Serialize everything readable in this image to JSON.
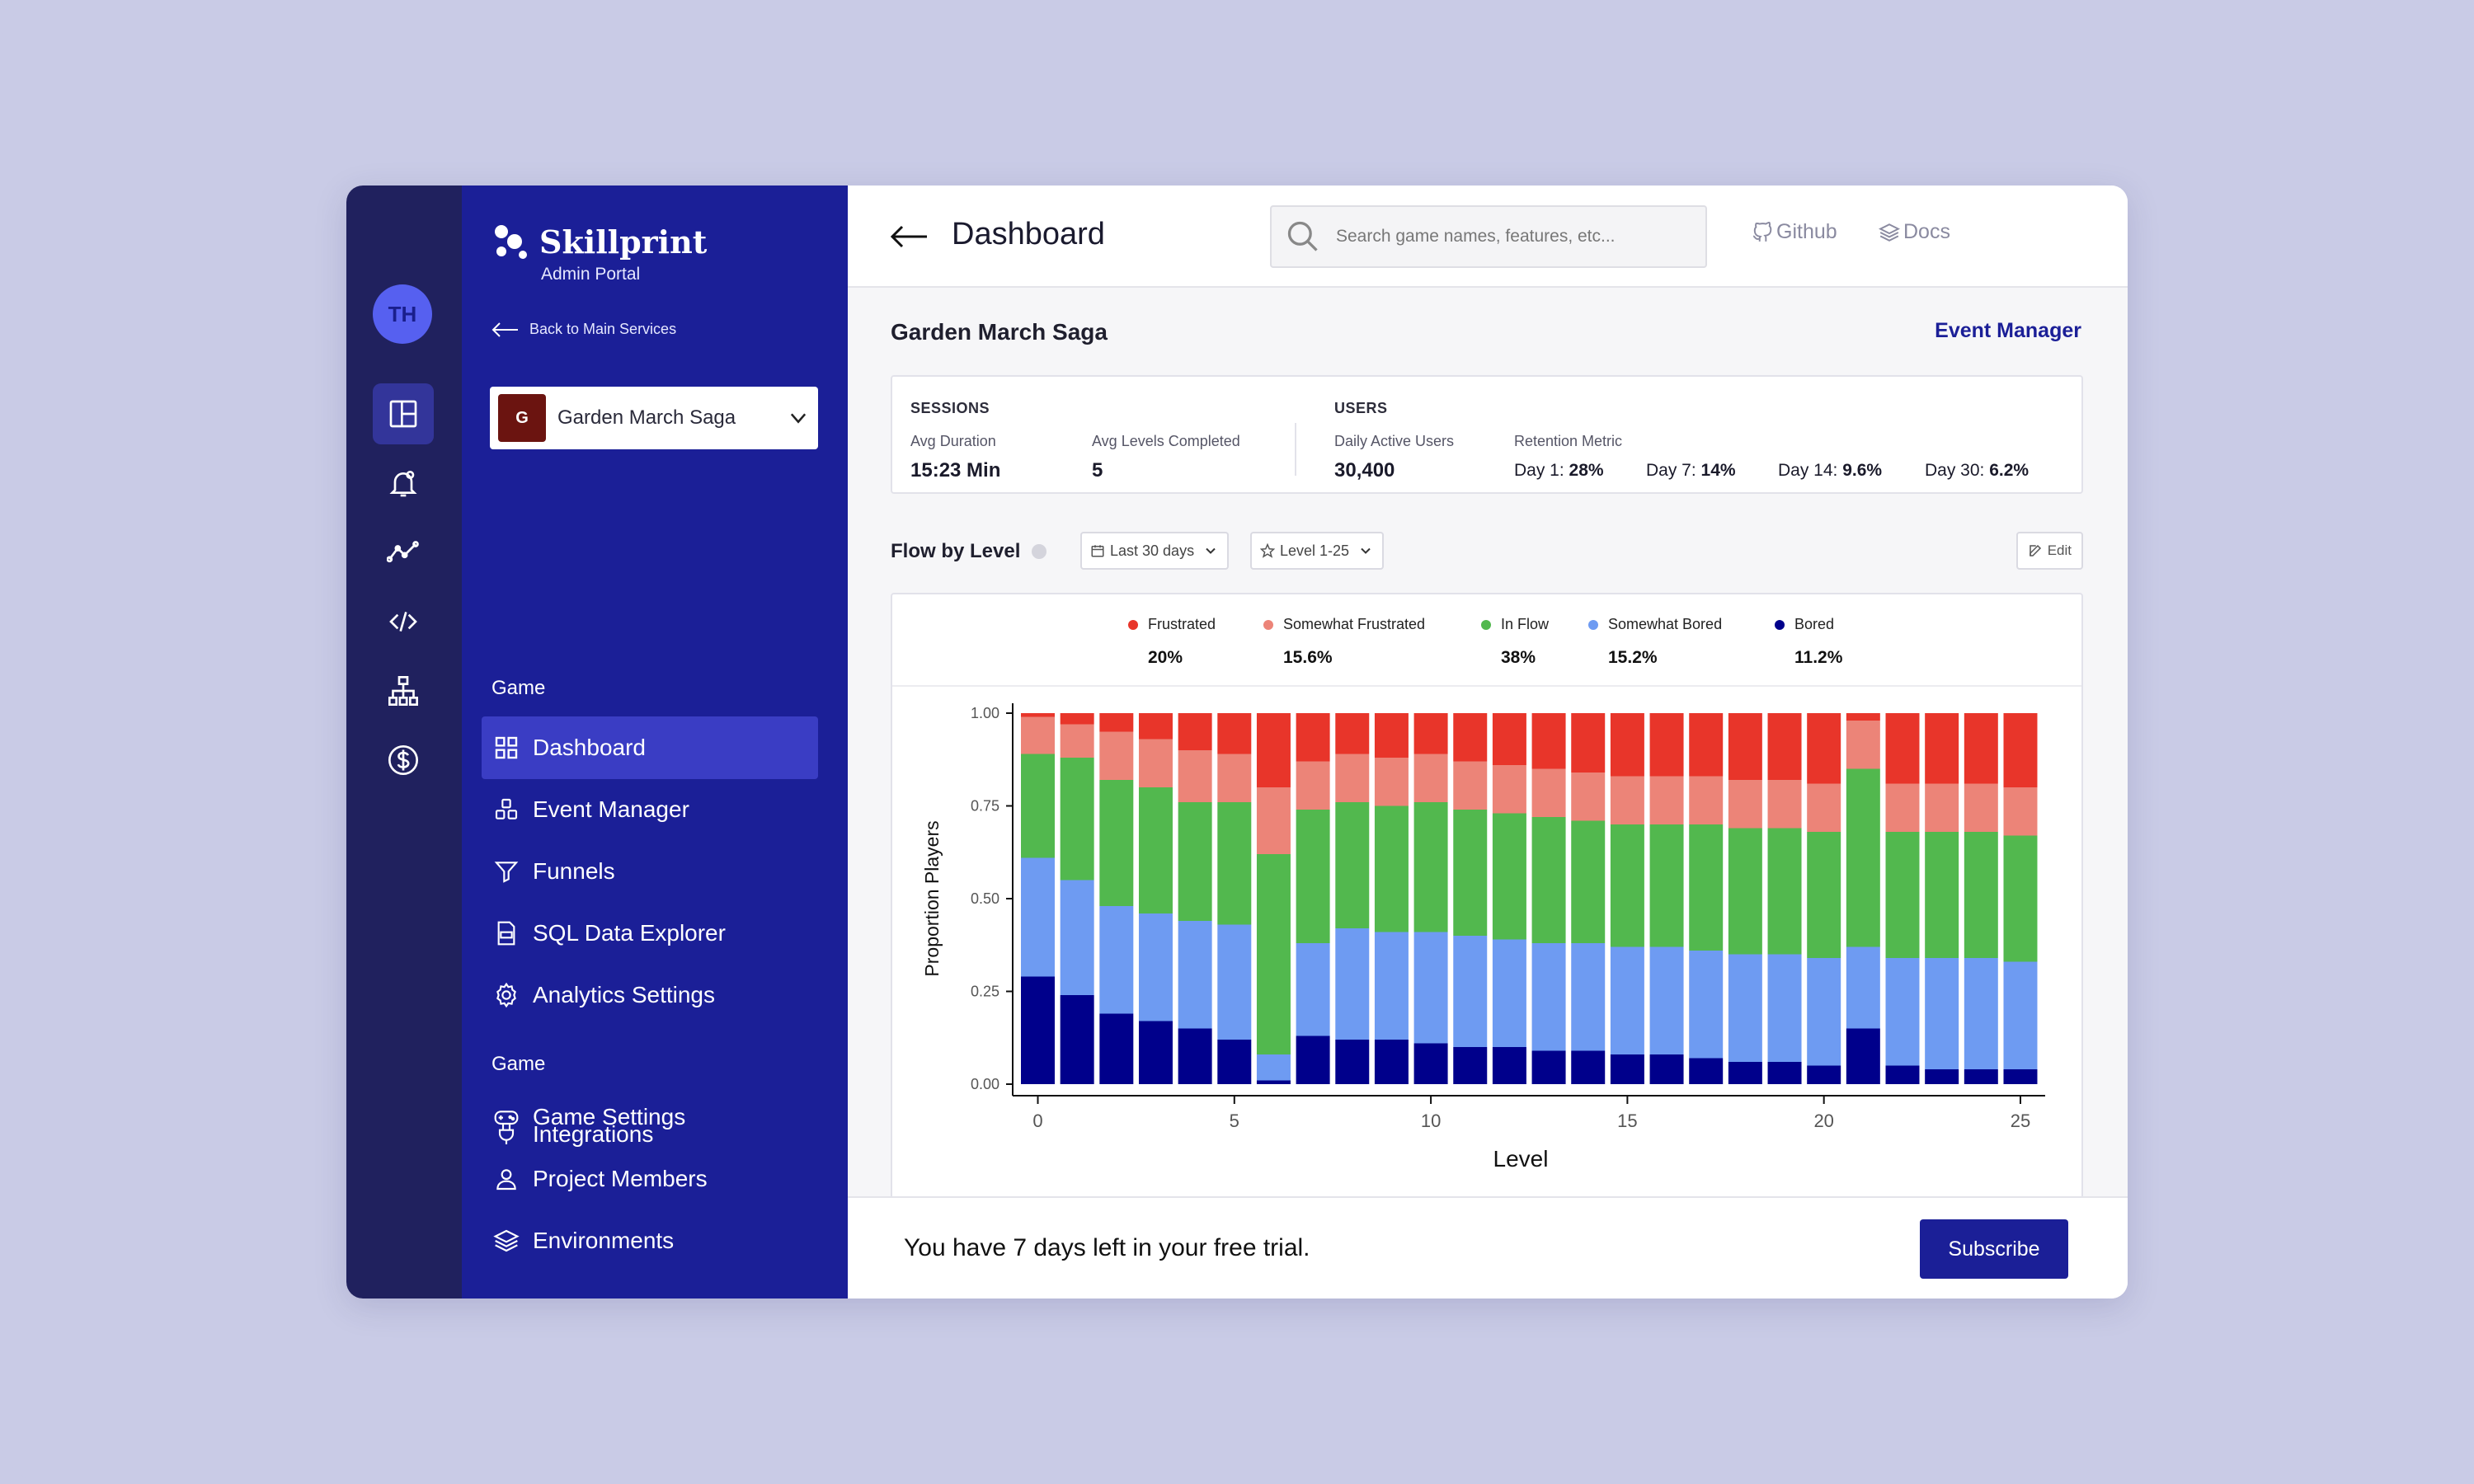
{
  "user": {
    "initials": "TH"
  },
  "brand": {
    "name": "Skillprint",
    "subtitle": "Admin Portal"
  },
  "sidebar": {
    "back_label": "Back to Main Services",
    "selected_game": {
      "initial": "G",
      "name": "Garden March Saga"
    },
    "section1": "Game",
    "section2": "Game",
    "items": [
      {
        "label": "Dashboard",
        "icon": "grid-icon"
      },
      {
        "label": "Event Manager",
        "icon": "cubes-icon"
      },
      {
        "label": "Funnels",
        "icon": "funnel-icon"
      },
      {
        "label": "SQL Data Explorer",
        "icon": "sql-file-icon"
      },
      {
        "label": "Analytics Settings",
        "icon": "gear-icon"
      },
      {
        "label": "Game Settings",
        "icon": "gamepad-icon"
      },
      {
        "label": "Project Members",
        "icon": "person-icon"
      },
      {
        "label": "Environments",
        "icon": "layers-icon"
      },
      {
        "label": "Integrations",
        "icon": "plug-icon"
      }
    ]
  },
  "rail": {
    "icons": [
      "layout-icon",
      "bell-icon",
      "line-chart-icon",
      "code-icon",
      "hierarchy-icon",
      "dollar-icon"
    ]
  },
  "header": {
    "title": "Dashboard",
    "search_placeholder": "Search game names, features, etc...",
    "github": "Github",
    "docs": "Docs"
  },
  "content": {
    "game_title": "Garden March Saga",
    "event_manager_link": "Event Manager"
  },
  "stats": {
    "sessions_header": "SESSIONS",
    "users_header": "USERS",
    "avg_duration_label": "Avg Duration",
    "avg_duration": "15:23 Min",
    "avg_levels_label": "Avg Levels Completed",
    "avg_levels": "5",
    "dau_label": "Daily Active Users",
    "dau": "30,400",
    "retention_label": "Retention Metric",
    "retention": [
      {
        "label": "Day 1:",
        "value": "28%"
      },
      {
        "label": "Day 7:",
        "value": "14%"
      },
      {
        "label": "Day 14:",
        "value": "9.6%"
      },
      {
        "label": "Day 30:",
        "value": "6.2%"
      }
    ]
  },
  "flow": {
    "title": "Flow by Level",
    "date_filter": "Last 30 days",
    "level_filter": "Level 1-25",
    "edit_label": "Edit",
    "legend": [
      {
        "name": "Frustrated",
        "pct": "20%",
        "color": "#e8352a"
      },
      {
        "name": "Somewhat Frustrated",
        "pct": "15.6%",
        "color": "#ec8478"
      },
      {
        "name": "In Flow",
        "pct": "38%",
        "color": "#52b84e"
      },
      {
        "name": "Somewhat Bored",
        "pct": "15.2%",
        "color": "#6e9bf2"
      },
      {
        "name": "Bored",
        "pct": "11.2%",
        "color": "#00008b"
      }
    ]
  },
  "chart_data": {
    "type": "bar",
    "stacked": true,
    "xlabel": "Level",
    "ylabel": "Proportion Players",
    "ylim": [
      0,
      1
    ],
    "yticks": [
      "0.00",
      "0.25",
      "0.50",
      "0.75",
      "1.00"
    ],
    "xticks": [
      0,
      5,
      10,
      15,
      20,
      25
    ],
    "categories": [
      0,
      1,
      2,
      3,
      4,
      5,
      6,
      7,
      8,
      9,
      10,
      11,
      12,
      13,
      14,
      15,
      16,
      17,
      18,
      19,
      20,
      21,
      22,
      23,
      24,
      25
    ],
    "series": [
      {
        "name": "Bored",
        "color": "#00008b",
        "values": [
          0.29,
          0.24,
          0.19,
          0.17,
          0.15,
          0.12,
          0.01,
          0.13,
          0.12,
          0.12,
          0.11,
          0.1,
          0.1,
          0.09,
          0.09,
          0.08,
          0.08,
          0.07,
          0.06,
          0.06,
          0.05,
          0.15,
          0.05,
          0.04,
          0.04,
          0.04
        ]
      },
      {
        "name": "Somewhat Bored",
        "color": "#6e9bf2",
        "values": [
          0.32,
          0.31,
          0.29,
          0.29,
          0.29,
          0.31,
          0.07,
          0.25,
          0.3,
          0.29,
          0.3,
          0.3,
          0.29,
          0.29,
          0.29,
          0.29,
          0.29,
          0.29,
          0.29,
          0.29,
          0.29,
          0.22,
          0.29,
          0.3,
          0.3,
          0.29
        ]
      },
      {
        "name": "In Flow",
        "color": "#52b84e",
        "values": [
          0.28,
          0.33,
          0.34,
          0.34,
          0.32,
          0.33,
          0.54,
          0.36,
          0.34,
          0.34,
          0.35,
          0.34,
          0.34,
          0.34,
          0.33,
          0.33,
          0.33,
          0.34,
          0.34,
          0.34,
          0.34,
          0.48,
          0.34,
          0.34,
          0.34,
          0.34
        ]
      },
      {
        "name": "Somewhat Frustrated",
        "color": "#ec8478",
        "values": [
          0.1,
          0.09,
          0.13,
          0.13,
          0.14,
          0.13,
          0.18,
          0.13,
          0.13,
          0.13,
          0.13,
          0.13,
          0.13,
          0.13,
          0.13,
          0.13,
          0.13,
          0.13,
          0.13,
          0.13,
          0.13,
          0.13,
          0.13,
          0.13,
          0.13,
          0.13
        ]
      },
      {
        "name": "Frustrated",
        "color": "#e8352a",
        "values": [
          0.01,
          0.03,
          0.05,
          0.07,
          0.1,
          0.11,
          0.2,
          0.13,
          0.11,
          0.12,
          0.11,
          0.13,
          0.14,
          0.15,
          0.16,
          0.17,
          0.17,
          0.17,
          0.18,
          0.18,
          0.19,
          0.02,
          0.19,
          0.19,
          0.19,
          0.2
        ]
      }
    ]
  },
  "trial": {
    "message": "You have 7 days left in your free trial.",
    "subscribe_label": "Subscribe"
  }
}
